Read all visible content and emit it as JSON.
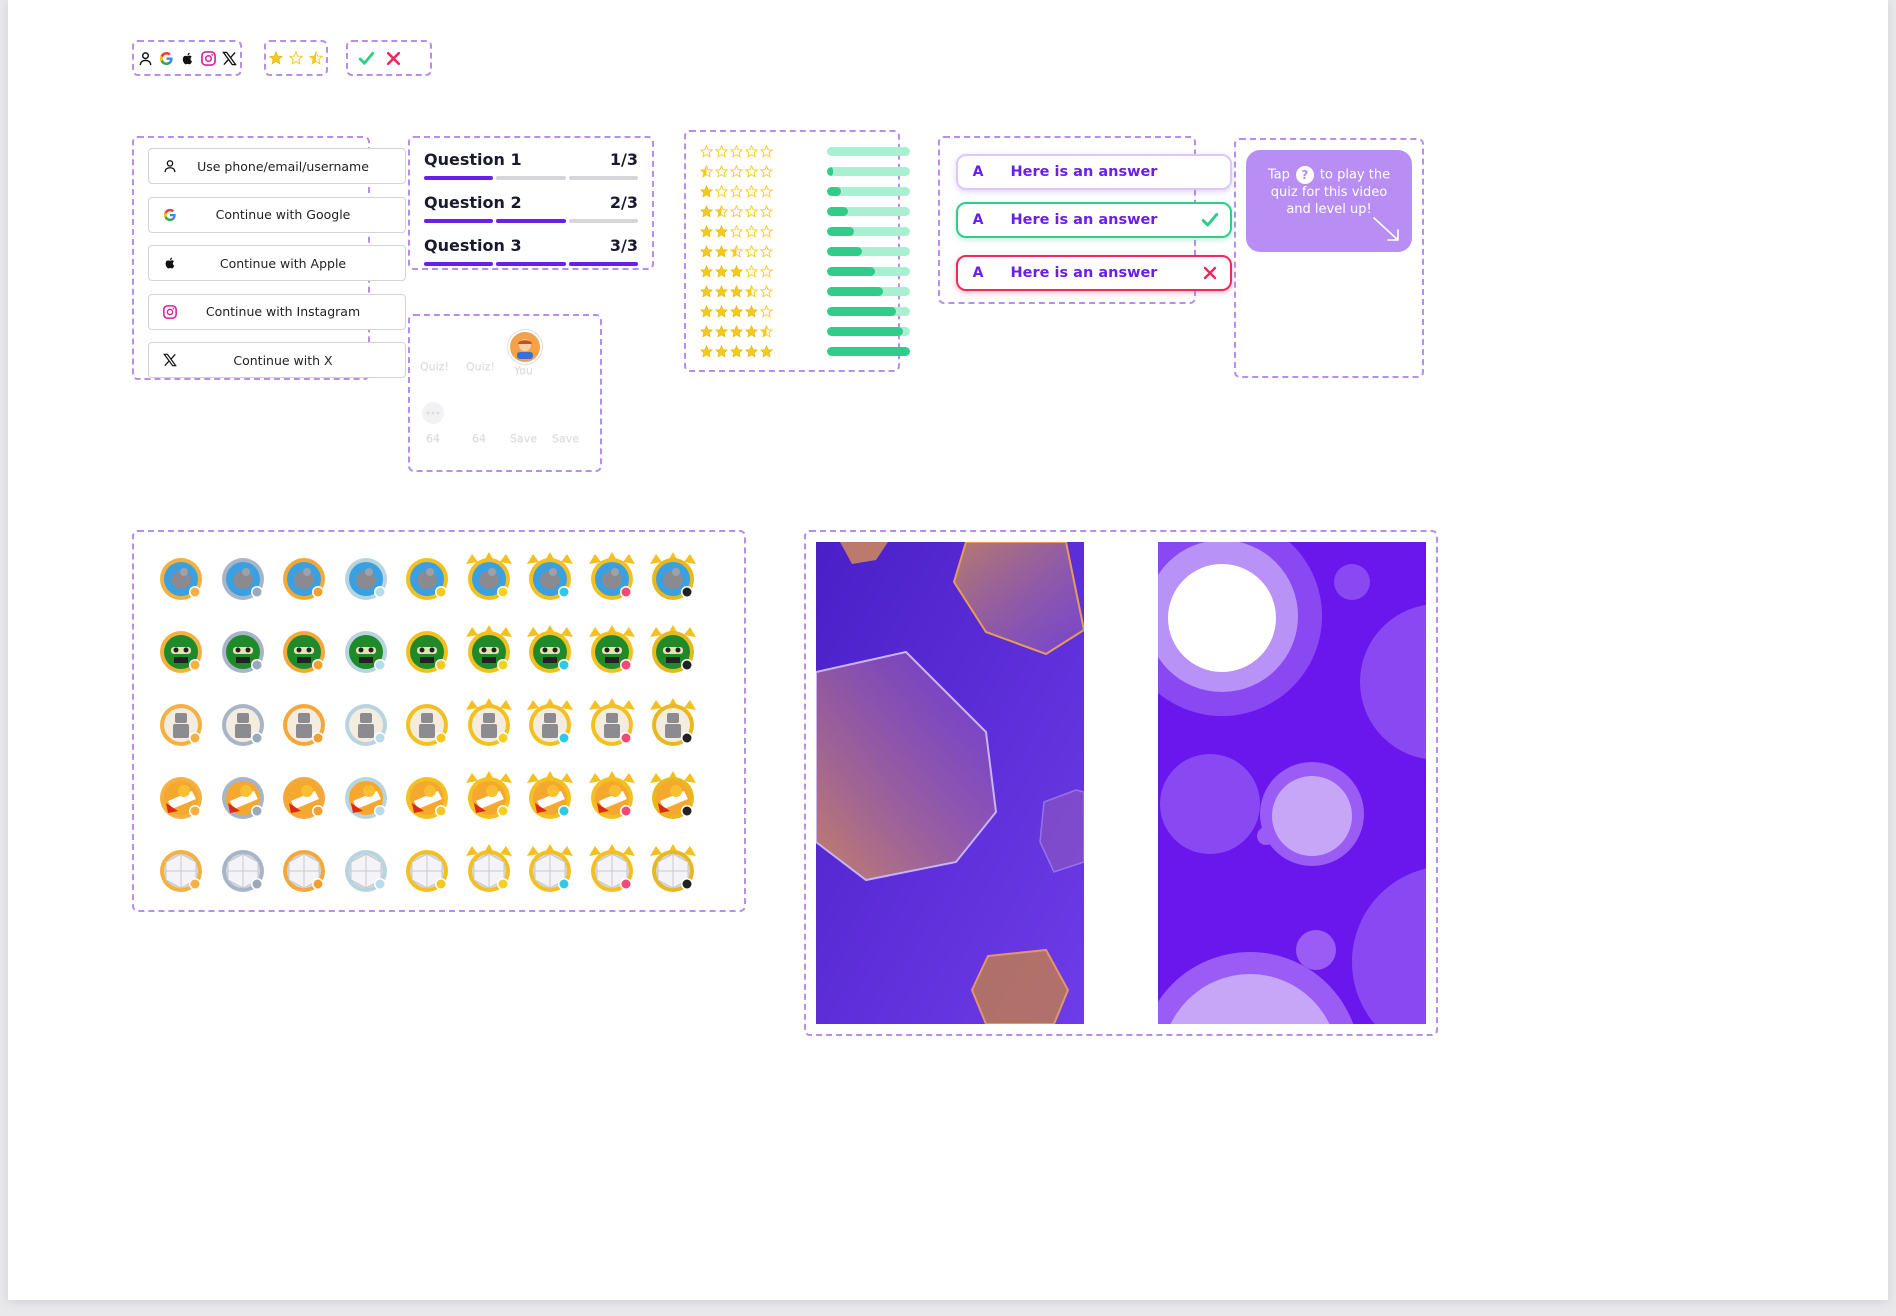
{
  "icon_strips": {
    "social": [
      "user-icon",
      "google-icon",
      "apple-icon",
      "instagram-icon",
      "x-icon"
    ],
    "stars": [
      "star-full-icon",
      "star-empty-icon",
      "star-half-icon"
    ],
    "marks": [
      "check-icon",
      "cross-icon"
    ]
  },
  "login": {
    "buttons": [
      {
        "icon": "user-icon",
        "label": "Use phone/email/username"
      },
      {
        "icon": "google-icon",
        "label": "Continue with Google"
      },
      {
        "icon": "apple-icon",
        "label": "Continue with Apple"
      },
      {
        "icon": "instagram-icon",
        "label": "Continue with Instagram"
      },
      {
        "icon": "x-icon",
        "label": "Continue with X"
      }
    ]
  },
  "questions": [
    {
      "title": "Question 1",
      "count": "1/3",
      "done": 1,
      "total": 3
    },
    {
      "title": "Question 2",
      "count": "2/3",
      "done": 2,
      "total": 3
    },
    {
      "title": "Question 3",
      "count": "3/3",
      "done": 3,
      "total": 3
    }
  ],
  "ghost_panel": {
    "labels": [
      "Quiz!",
      "Quiz!",
      "You"
    ],
    "counts": [
      "64",
      "64",
      "Save",
      "Save"
    ]
  },
  "ratings": [
    {
      "stars": 0,
      "fill": 0
    },
    {
      "stars": 0.5,
      "fill": 0.08
    },
    {
      "stars": 1,
      "fill": 0.17
    },
    {
      "stars": 1.5,
      "fill": 0.25
    },
    {
      "stars": 2,
      "fill": 0.33
    },
    {
      "stars": 2.5,
      "fill": 0.42
    },
    {
      "stars": 3,
      "fill": 0.58
    },
    {
      "stars": 3.5,
      "fill": 0.67
    },
    {
      "stars": 4,
      "fill": 0.83
    },
    {
      "stars": 4.5,
      "fill": 0.92
    },
    {
      "stars": 5,
      "fill": 1
    }
  ],
  "answers": [
    {
      "letter": "A",
      "text": "Here is an answer",
      "state": "default"
    },
    {
      "letter": "A",
      "text": "Here is an answer",
      "state": "correct"
    },
    {
      "letter": "A",
      "text": "Here is an answer",
      "state": "wrong"
    }
  ],
  "tooltip": {
    "line1_before": "Tap",
    "line1_after": "to play the",
    "line2": "quiz for this video",
    "line3": "and level up!"
  },
  "badges": {
    "rows": [
      "robot-chicken",
      "matrix-hacker",
      "steel-robot",
      "racing-car",
      "quilted-pattern"
    ],
    "tiers": [
      "bronze",
      "silver",
      "gold",
      "diamond",
      "gold-plus",
      "gold-winged",
      "diamond-winged",
      "ruby-winged",
      "legend-winged"
    ]
  },
  "colors": {
    "accent": "#6a1fe6",
    "success": "#2fcc8a",
    "danger": "#ef2a5a",
    "star": "#f7c81d",
    "dash": "#b58ef0"
  }
}
